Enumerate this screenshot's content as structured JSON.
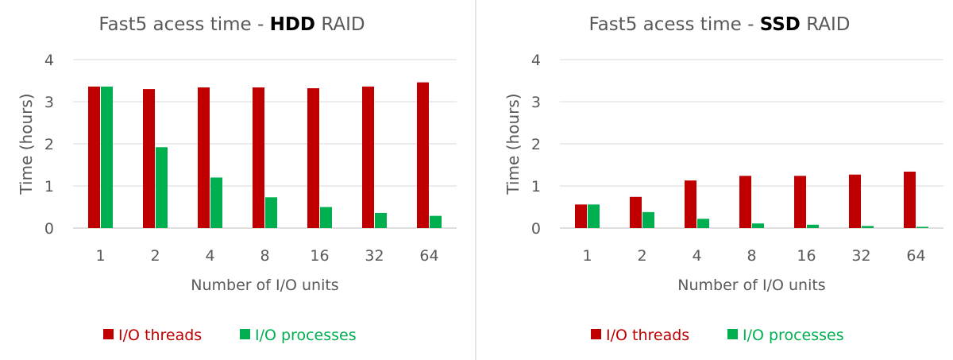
{
  "chart_data": [
    {
      "type": "bar",
      "title_prefix": "Fast5 acess time - ",
      "title_bold": "HDD",
      "title_suffix": " RAID",
      "xlabel": "Number of I/O units",
      "ylabel": "Time (hours)",
      "ylim": [
        0,
        4
      ],
      "yticks": [
        "0",
        "1",
        "2",
        "3",
        "4"
      ],
      "categories": [
        "1",
        "2",
        "4",
        "8",
        "16",
        "32",
        "64"
      ],
      "series": [
        {
          "name": "I/O threads",
          "color": "#c00000",
          "values": [
            3.36,
            3.3,
            3.34,
            3.34,
            3.32,
            3.36,
            3.46
          ]
        },
        {
          "name": "I/O processes",
          "color": "#00b050",
          "values": [
            3.36,
            1.92,
            1.2,
            0.73,
            0.5,
            0.36,
            0.29
          ]
        }
      ],
      "legend_position": "bottom"
    },
    {
      "type": "bar",
      "title_prefix": "Fast5 acess time - ",
      "title_bold": "SSD",
      "title_suffix": " RAID",
      "xlabel": "Number of I/O units",
      "ylabel": "Time (hours)",
      "ylim": [
        0,
        4
      ],
      "yticks": [
        "0",
        "1",
        "2",
        "3",
        "4"
      ],
      "categories": [
        "1",
        "2",
        "4",
        "8",
        "16",
        "32",
        "64"
      ],
      "series": [
        {
          "name": "I/O threads",
          "color": "#c00000",
          "values": [
            0.56,
            0.74,
            1.13,
            1.24,
            1.24,
            1.27,
            1.34
          ]
        },
        {
          "name": "I/O processes",
          "color": "#00b050",
          "values": [
            0.56,
            0.38,
            0.22,
            0.11,
            0.08,
            0.05,
            0.03
          ]
        }
      ],
      "legend_position": "bottom"
    }
  ],
  "colors": {
    "axis_text": "#595959",
    "title_text": "#595959",
    "gridline": "#d9d9d9",
    "divider": "#e6e6e6"
  }
}
